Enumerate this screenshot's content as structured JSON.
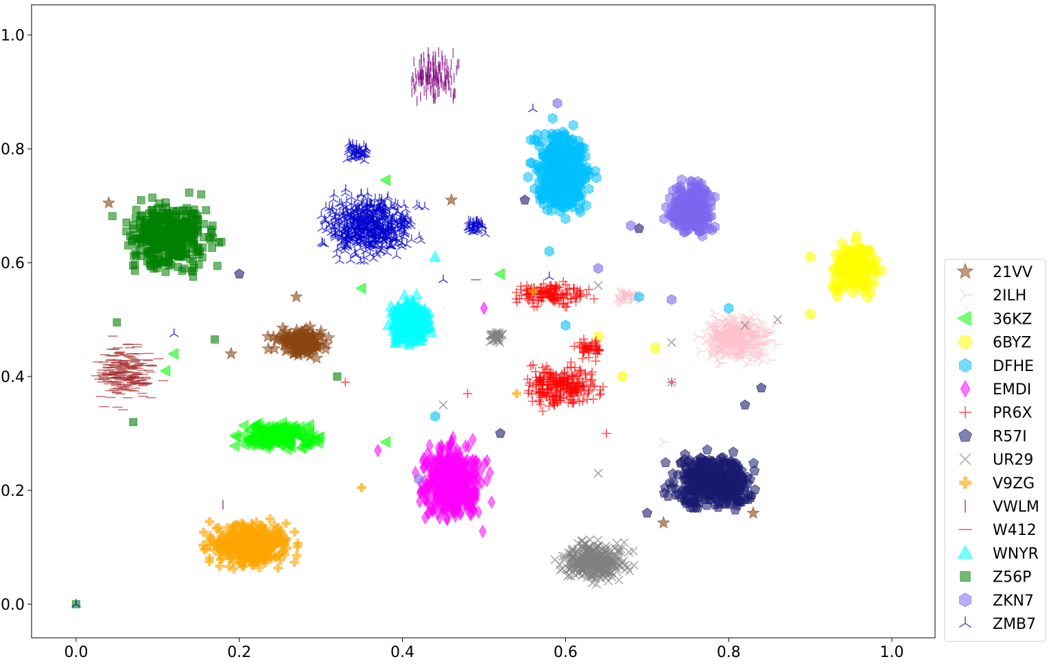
{
  "chart_data": {
    "type": "scatter",
    "title": "",
    "xlabel": "",
    "ylabel": "",
    "xlim": [
      -0.055,
      1.055
    ],
    "ylim": [
      -0.058,
      1.055
    ],
    "x_ticks": [
      0.0,
      0.2,
      0.4,
      0.6,
      0.8,
      1.0
    ],
    "x_tick_labels": [
      "0.0",
      "0.2",
      "0.4",
      "0.6",
      "0.8",
      "1.0"
    ],
    "y_ticks": [
      0.0,
      0.2,
      0.4,
      0.6,
      0.8,
      1.0
    ],
    "y_tick_labels": [
      "0.0",
      "0.2",
      "0.4",
      "0.6",
      "0.8",
      "1.0"
    ],
    "grid": false,
    "legend_position": "lower-right outside plot",
    "series": [
      {
        "name": "21VV",
        "color": "#8B4513",
        "marker": "star",
        "approx_points": 120,
        "clusters": [
          {
            "x": [
              0.22,
              0.33
            ],
            "y": [
              0.42,
              0.5
            ]
          }
        ],
        "points": [
          [
            0.04,
            0.705
          ],
          [
            0.19,
            0.44
          ],
          [
            0.27,
            0.54
          ],
          [
            0.72,
            0.143
          ],
          [
            0.83,
            0.16
          ],
          [
            0.46,
            0.71
          ]
        ]
      },
      {
        "name": "2ILH",
        "color": "#FFC0CB",
        "marker": "tri_right",
        "approx_points": 350,
        "clusters": [
          {
            "x": [
              0.74,
              0.88
            ],
            "y": [
              0.4,
              0.53
            ]
          },
          {
            "x": [
              0.65,
              0.7
            ],
            "y": [
              0.52,
              0.56
            ]
          }
        ],
        "points": [
          [
            0.72,
            0.285
          ]
        ]
      },
      {
        "name": "36KZ",
        "color": "#00FF00",
        "marker": "triangle_left",
        "approx_points": 150,
        "clusters": [
          {
            "x": [
              0.17,
              0.33
            ],
            "y": [
              0.25,
              0.34
            ]
          }
        ],
        "points": [
          [
            0.35,
            0.555
          ],
          [
            0.12,
            0.44
          ],
          [
            0.11,
            0.41
          ],
          [
            0.38,
            0.745
          ],
          [
            0.38,
            0.285
          ],
          [
            0.52,
            0.58
          ]
        ]
      },
      {
        "name": "6BYZ",
        "color": "#FFFF00",
        "marker": "circle",
        "approx_points": 200,
        "clusters": [
          {
            "x": [
              0.91,
              1.0
            ],
            "y": [
              0.52,
              0.66
            ]
          }
        ],
        "points": [
          [
            0.9,
            0.61
          ],
          [
            0.9,
            0.51
          ],
          [
            0.71,
            0.45
          ],
          [
            0.67,
            0.4
          ],
          [
            0.64,
            0.47
          ]
        ]
      },
      {
        "name": "DFHE",
        "color": "#00BFFF",
        "marker": "hexagon",
        "approx_points": 450,
        "clusters": [
          {
            "x": [
              0.54,
              0.65
            ],
            "y": [
              0.64,
              0.88
            ]
          }
        ],
        "points": [
          [
            0.6,
            0.49
          ],
          [
            0.58,
            0.62
          ],
          [
            0.69,
            0.54
          ],
          [
            0.8,
            0.52
          ],
          [
            0.44,
            0.33
          ]
        ]
      },
      {
        "name": "EMDI",
        "color": "#FF00FF",
        "marker": "thin_diamond",
        "approx_points": 500,
        "clusters": [
          {
            "x": [
              0.4,
              0.52
            ],
            "y": [
              0.11,
              0.32
            ]
          }
        ],
        "points": [
          [
            0.37,
            0.27
          ],
          [
            0.5,
            0.52
          ]
        ]
      },
      {
        "name": "PR6X",
        "color": "#FF0000",
        "marker": "plus",
        "approx_points": 420,
        "clusters": [
          {
            "x": [
              0.52,
              0.67
            ],
            "y": [
              0.32,
              0.45
            ]
          },
          {
            "x": [
              0.6,
              0.66
            ],
            "y": [
              0.42,
              0.48
            ]
          },
          {
            "x": [
              0.51,
              0.66
            ],
            "y": [
              0.51,
              0.58
            ]
          }
        ],
        "points": [
          [
            0.33,
            0.39
          ],
          [
            0.65,
            0.3
          ],
          [
            0.73,
            0.39
          ],
          [
            0.48,
            0.37
          ]
        ]
      },
      {
        "name": "R57I",
        "color": "#191970",
        "marker": "pentagon",
        "approx_points": 400,
        "clusters": [
          {
            "x": [
              0.7,
              0.86
            ],
            "y": [
              0.14,
              0.29
            ]
          }
        ],
        "points": [
          [
            0.55,
            0.71
          ],
          [
            0.2,
            0.58
          ],
          [
            0.69,
            0.66
          ],
          [
            0.82,
            0.35
          ],
          [
            0.7,
            0.16
          ],
          [
            0.52,
            0.3
          ],
          [
            0.84,
            0.38
          ]
        ]
      },
      {
        "name": "UR29",
        "color": "#808080",
        "marker": "x",
        "approx_points": 380,
        "clusters": [
          {
            "x": [
              0.57,
              0.7
            ],
            "y": [
              0.02,
              0.13
            ]
          },
          {
            "x": [
              0.5,
              0.53
            ],
            "y": [
              0.45,
              0.49
            ]
          }
        ],
        "points": [
          [
            0.64,
            0.23
          ],
          [
            0.73,
            0.39
          ],
          [
            0.73,
            0.46
          ],
          [
            0.82,
            0.49
          ],
          [
            0.86,
            0.5
          ],
          [
            0.64,
            0.56
          ],
          [
            0.45,
            0.35
          ]
        ]
      },
      {
        "name": "V9ZG",
        "color": "#FFA500",
        "marker": "plus_filled",
        "approx_points": 400,
        "clusters": [
          {
            "x": [
              0.13,
              0.3
            ],
            "y": [
              0.04,
              0.17
            ]
          }
        ],
        "points": [
          [
            0.35,
            0.205
          ],
          [
            0.54,
            0.37
          ],
          [
            0.56,
            0.55
          ]
        ]
      },
      {
        "name": "VWLM",
        "color": "#800080",
        "marker": "vline",
        "approx_points": 140,
        "clusters": [
          {
            "x": [
              0.39,
              0.49
            ],
            "y": [
              0.86,
              1.0
            ]
          }
        ],
        "points": [
          [
            0.18,
            0.175
          ]
        ]
      },
      {
        "name": "W412",
        "color": "#A52A2A",
        "marker": "hline",
        "approx_points": 220,
        "clusters": [
          {
            "x": [
              0.0,
              0.12
            ],
            "y": [
              0.32,
              0.49
            ]
          }
        ],
        "points": [
          [
            0.49,
            0.57
          ]
        ]
      },
      {
        "name": "WNYR",
        "color": "#00FFFF",
        "marker": "triangle_up",
        "approx_points": 300,
        "clusters": [
          {
            "x": [
              0.37,
              0.45
            ],
            "y": [
              0.43,
              0.56
            ]
          }
        ],
        "points": [
          [
            0.44,
            0.61
          ]
        ]
      },
      {
        "name": "Z56P",
        "color": "#008000",
        "marker": "square",
        "approx_points": 400,
        "clusters": [
          {
            "x": [
              0.03,
              0.2
            ],
            "y": [
              0.55,
              0.74
            ]
          }
        ],
        "points": [
          [
            0.0,
            0.0
          ],
          [
            0.05,
            0.495
          ],
          [
            0.17,
            0.465
          ],
          [
            0.32,
            0.4
          ],
          [
            0.07,
            0.32
          ]
        ]
      },
      {
        "name": "ZKN7",
        "color": "#7B68EE",
        "marker": "hexagon",
        "approx_points": 300,
        "clusters": [
          {
            "x": [
              0.71,
              0.8
            ],
            "y": [
              0.62,
              0.77
            ]
          }
        ],
        "points": [
          [
            0.68,
            0.665
          ],
          [
            0.73,
            0.535
          ],
          [
            0.64,
            0.59
          ],
          [
            0.42,
            0.22
          ],
          [
            0.59,
            0.88
          ]
        ]
      },
      {
        "name": "ZMB7",
        "color": "#0000CD",
        "marker": "tri_up",
        "approx_points": 600,
        "clusters": [
          {
            "x": [
              0.27,
              0.45
            ],
            "y": [
              0.58,
              0.75
            ]
          },
          {
            "x": [
              0.32,
              0.37
            ],
            "y": [
              0.77,
              0.82
            ]
          },
          {
            "x": [
              0.47,
              0.51
            ],
            "y": [
              0.64,
              0.69
            ]
          }
        ],
        "points": [
          [
            0.56,
            0.87
          ],
          [
            0.45,
            0.57
          ],
          [
            0.58,
            0.575
          ],
          [
            0.0,
            0.0
          ],
          [
            0.12,
            0.475
          ]
        ]
      }
    ]
  }
}
